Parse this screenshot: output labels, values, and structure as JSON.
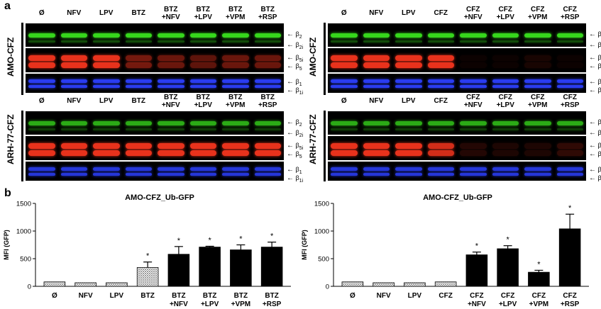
{
  "panel_a_label": "a",
  "panel_b_label": "b",
  "blots": {
    "left_lanes": [
      "Ø",
      "NFV",
      "LPV",
      "BTZ",
      "BTZ\n+NFV",
      "BTZ\n+LPV",
      "BTZ\n+VPM",
      "BTZ\n+RSP"
    ],
    "right_lanes": [
      "Ø",
      "NFV",
      "LPV",
      "CFZ",
      "CFZ\n+NFV",
      "CFZ\n+LPV",
      "CFZ\n+VPM",
      "CFZ\n+RSP"
    ],
    "row_labels": [
      "AMO-CFZ",
      "ARH-77-CFZ"
    ],
    "markers": [
      "β2",
      "β2i",
      "β5i",
      "β5",
      "β1",
      "β1i"
    ],
    "colors": {
      "green": "#36d61c",
      "red": "#e8321c",
      "blue": "#2a3cf0"
    },
    "intensity": {
      "amo_left": {
        "green": [
          1,
          1,
          1,
          1,
          1,
          1,
          1,
          1
        ],
        "red": [
          1,
          1,
          1,
          0.5,
          0.45,
          0.4,
          0.45,
          0.45
        ],
        "blue": [
          1,
          1,
          1,
          1,
          1,
          1,
          1,
          1
        ]
      },
      "amo_right": {
        "green": [
          1,
          1,
          1,
          1,
          1,
          1,
          1,
          1
        ],
        "red": [
          1,
          1,
          1,
          1,
          0.05,
          0.05,
          0.1,
          0.05
        ],
        "blue": [
          1,
          1,
          1,
          1,
          1,
          1,
          1,
          1
        ]
      },
      "arh_left": {
        "green": [
          0.8,
          0.8,
          0.8,
          0.8,
          0.8,
          0.8,
          0.8,
          0.8
        ],
        "red": [
          1,
          1,
          1,
          1,
          1,
          1,
          1,
          1
        ],
        "blue": [
          0.9,
          0.9,
          0.9,
          0.9,
          0.9,
          0.9,
          0.9,
          0.9
        ]
      },
      "arh_right": {
        "green": [
          0.8,
          0.8,
          0.8,
          0.8,
          0.8,
          0.8,
          0.8,
          0.8
        ],
        "red": [
          1,
          1,
          1,
          0.9,
          0.15,
          0.12,
          0.12,
          0.2
        ],
        "blue": [
          0.9,
          0.9,
          0.9,
          0.9,
          0.9,
          0.9,
          0.9,
          0.9
        ]
      }
    }
  },
  "chart_data": [
    {
      "type": "bar",
      "title": "AMO-CFZ_Ub-GFP",
      "ylabel": "MFI (GFP)",
      "xlabel": "",
      "ylim": [
        0,
        1500
      ],
      "yticks": [
        "0",
        "500",
        "1000",
        "1500"
      ],
      "categories": [
        "Ø",
        "NFV",
        "LPV",
        "BTZ",
        "BTZ\n+NFV",
        "BTZ\n+LPV",
        "BTZ\n+VPM",
        "BTZ\n+RSP"
      ],
      "values": [
        80,
        65,
        65,
        340,
        580,
        710,
        660,
        710
      ],
      "errors": [
        0,
        0,
        0,
        100,
        140,
        15,
        90,
        90
      ],
      "patterns": [
        "hatch",
        "hatch",
        "hatch",
        "hatch",
        "solid",
        "solid",
        "solid",
        "solid"
      ],
      "significance": [
        "",
        "",
        "",
        "*",
        "*",
        "*",
        "*",
        "*"
      ]
    },
    {
      "type": "bar",
      "title": "AMO-CFZ_Ub-GFP",
      "ylabel": "MFI (GFP)",
      "xlabel": "",
      "ylim": [
        0,
        1500
      ],
      "yticks": [
        "0",
        "500",
        "1000",
        "1500"
      ],
      "categories": [
        "Ø",
        "NFV",
        "LPV",
        "CFZ",
        "CFZ\n+NFV",
        "CFZ\n+LPV",
        "CFZ\n+VPM",
        "CFZ\n+RSP"
      ],
      "values": [
        80,
        65,
        65,
        80,
        570,
        680,
        255,
        1040
      ],
      "errors": [
        0,
        0,
        0,
        0,
        50,
        55,
        35,
        265
      ],
      "patterns": [
        "hatch",
        "hatch",
        "hatch",
        "hatch",
        "solid",
        "solid",
        "solid",
        "solid"
      ],
      "significance": [
        "",
        "",
        "",
        "",
        "*",
        "*",
        "*",
        "*"
      ]
    }
  ]
}
